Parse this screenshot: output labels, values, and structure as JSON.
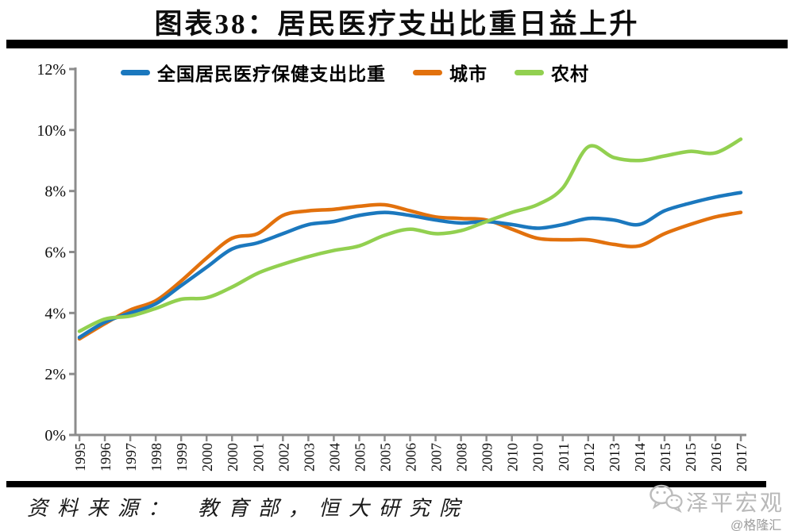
{
  "title": "图表38：居民医疗支出比重日益上升",
  "legend": [
    {
      "id": "national",
      "label": "全国居民医疗保健支出比重",
      "color": "#1B78BE"
    },
    {
      "id": "urban",
      "label": "城市",
      "color": "#E2710D"
    },
    {
      "id": "rural",
      "label": "农村",
      "color": "#92D050"
    }
  ],
  "footer": {
    "source": "资料来源：　教育部，恒大研究院"
  },
  "watermark": {
    "wechat_icon": "wechat-icon",
    "name": "泽平宏观",
    "site": "@格隆汇"
  },
  "colors": {
    "axis": "#8C8C8C",
    "rule": "#000000",
    "background": "#FFFFFF"
  },
  "chart_data": {
    "type": "line",
    "title": "图表38：居民医疗支出比重日益上升",
    "xlabel": "",
    "ylabel": "",
    "ylim": [
      0,
      12
    ],
    "grid": false,
    "legend_position": "top",
    "categories": [
      "1995",
      "1996",
      "1997",
      "1998",
      "1999",
      "2000",
      "2000",
      "2001",
      "2002",
      "2003",
      "2004",
      "2005",
      "2005",
      "2006",
      "2007",
      "2008",
      "2009",
      "2010",
      "2010",
      "2011",
      "2012",
      "2013",
      "2014",
      "2015",
      "2015",
      "2016",
      "2017"
    ],
    "yticks": [
      {
        "label": "0%",
        "value": 0
      },
      {
        "label": "2%",
        "value": 2
      },
      {
        "label": "4%",
        "value": 4
      },
      {
        "label": "6%",
        "value": 6
      },
      {
        "label": "8%",
        "value": 8
      },
      {
        "label": "10%",
        "value": 10
      },
      {
        "label": "12%",
        "value": 12
      }
    ],
    "series": [
      {
        "id": "national",
        "name": "全国居民医疗保健支出比重",
        "color": "#1B78BE",
        "values": [
          3.2,
          3.7,
          4.0,
          4.3,
          4.9,
          5.5,
          6.1,
          6.3,
          6.6,
          6.9,
          7.0,
          7.2,
          7.3,
          7.2,
          7.05,
          6.95,
          7.0,
          6.9,
          6.78,
          6.9,
          7.1,
          7.05,
          6.9,
          7.35,
          7.6,
          7.8,
          7.95
        ]
      },
      {
        "id": "urban",
        "name": "城市",
        "color": "#E2710D",
        "values": [
          3.15,
          3.65,
          4.1,
          4.4,
          5.05,
          5.8,
          6.45,
          6.6,
          7.2,
          7.35,
          7.4,
          7.5,
          7.55,
          7.35,
          7.15,
          7.1,
          7.05,
          6.75,
          6.45,
          6.4,
          6.4,
          6.25,
          6.2,
          6.6,
          6.9,
          7.15,
          7.3
        ]
      },
      {
        "id": "rural",
        "name": "农村",
        "color": "#92D050",
        "values": [
          3.4,
          3.8,
          3.9,
          4.15,
          4.45,
          4.5,
          4.85,
          5.3,
          5.6,
          5.85,
          6.05,
          6.2,
          6.55,
          6.75,
          6.6,
          6.7,
          7.0,
          7.3,
          7.55,
          8.1,
          9.45,
          9.1,
          9.0,
          9.15,
          9.3,
          9.25,
          9.7
        ]
      }
    ]
  }
}
